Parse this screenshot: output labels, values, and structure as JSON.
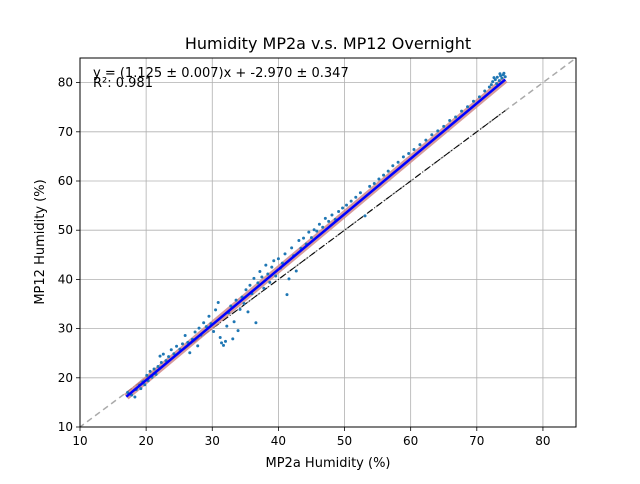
{
  "chart_data": {
    "type": "scatter",
    "title": "Humidity MP2a v.s. MP12 Overnight",
    "xlabel": "MP2a Humidity (%)",
    "ylabel": "MP12 Humidity (%)",
    "xlim": [
      10,
      85
    ],
    "ylim": [
      10,
      85
    ],
    "xticks": [
      "10",
      "20",
      "30",
      "40",
      "50",
      "60",
      "70",
      "80"
    ],
    "yticks": [
      "10",
      "20",
      "30",
      "40",
      "50",
      "60",
      "70",
      "80"
    ],
    "grid": true,
    "annotation": {
      "equation": "y = (1.125 ± 0.007)x + -2.970 ± 0.347",
      "r2": "R²: 0.981"
    },
    "fit": {
      "slope": 1.125,
      "intercept": -2.97,
      "x_range": [
        17,
        74.3
      ]
    },
    "fit_band": {
      "x_range": [
        17,
        74.3
      ]
    },
    "identity_line": {
      "x_range": [
        5,
        90
      ]
    },
    "secondary_line": {
      "x_range": [
        17,
        74.3
      ]
    },
    "scatter_points": [
      [
        17.2,
        17.0
      ],
      [
        17.8,
        16.5
      ],
      [
        18.3,
        16.1
      ],
      [
        18.5,
        17.6
      ],
      [
        19.0,
        18.5
      ],
      [
        19.2,
        17.8
      ],
      [
        19.5,
        19.2
      ],
      [
        19.8,
        18.6
      ],
      [
        20.1,
        20.5
      ],
      [
        20.3,
        19.4
      ],
      [
        20.6,
        21.3
      ],
      [
        20.9,
        20.1
      ],
      [
        21.2,
        21.8
      ],
      [
        21.5,
        20.7
      ],
      [
        21.8,
        22.3
      ],
      [
        22.1,
        24.4
      ],
      [
        22.3,
        23.1
      ],
      [
        22.6,
        24.8
      ],
      [
        23.0,
        23.5
      ],
      [
        23.4,
        24.3
      ],
      [
        23.8,
        25.7
      ],
      [
        24.2,
        24.9
      ],
      [
        24.6,
        26.4
      ],
      [
        25.1,
        25.8
      ],
      [
        25.5,
        26.9
      ],
      [
        25.9,
        28.6
      ],
      [
        26.3,
        27.2
      ],
      [
        26.6,
        25.1
      ],
      [
        27.0,
        27.8
      ],
      [
        27.4,
        29.3
      ],
      [
        27.8,
        26.5
      ],
      [
        28.0,
        30.1
      ],
      [
        28.3,
        28.7
      ],
      [
        28.7,
        31.2
      ],
      [
        29.1,
        30.4
      ],
      [
        29.5,
        32.5
      ],
      [
        29.8,
        31.0
      ],
      [
        30.2,
        29.4
      ],
      [
        30.5,
        33.8
      ],
      [
        30.9,
        35.3
      ],
      [
        31.2,
        28.2
      ],
      [
        31.4,
        27.1
      ],
      [
        31.7,
        26.6
      ],
      [
        32.0,
        27.4
      ],
      [
        32.2,
        30.5
      ],
      [
        32.5,
        33.2
      ],
      [
        32.8,
        34.6
      ],
      [
        33.1,
        27.9
      ],
      [
        33.3,
        31.4
      ],
      [
        33.6,
        35.8
      ],
      [
        33.9,
        29.6
      ],
      [
        34.2,
        33.9
      ],
      [
        34.5,
        36.4
      ],
      [
        34.8,
        35.1
      ],
      [
        35.1,
        37.9
      ],
      [
        35.4,
        33.4
      ],
      [
        35.7,
        38.8
      ],
      [
        36.0,
        37.1
      ],
      [
        36.3,
        40.2
      ],
      [
        36.6,
        31.2
      ],
      [
        36.9,
        39.3
      ],
      [
        37.2,
        41.6
      ],
      [
        37.5,
        40.5
      ],
      [
        37.8,
        38.2
      ],
      [
        38.1,
        42.9
      ],
      [
        38.4,
        41.1
      ],
      [
        38.7,
        39.4
      ],
      [
        39.0,
        42.5
      ],
      [
        39.3,
        43.8
      ],
      [
        39.6,
        40.7
      ],
      [
        40.0,
        44.2
      ],
      [
        40.3,
        42.3
      ],
      [
        40.6,
        43.3
      ],
      [
        41.0,
        45.2
      ],
      [
        41.3,
        36.9
      ],
      [
        41.6,
        40.1
      ],
      [
        42.0,
        46.4
      ],
      [
        42.3,
        44.8
      ],
      [
        42.7,
        41.7
      ],
      [
        43.1,
        47.9
      ],
      [
        43.4,
        46.3
      ],
      [
        43.8,
        48.4
      ],
      [
        44.2,
        47.2
      ],
      [
        44.6,
        49.6
      ],
      [
        45.0,
        48.5
      ],
      [
        45.4,
        50.1
      ],
      [
        45.8,
        49.8
      ],
      [
        46.2,
        51.2
      ],
      [
        46.7,
        50.6
      ],
      [
        47.1,
        52.4
      ],
      [
        47.6,
        51.8
      ],
      [
        48.1,
        53.1
      ],
      [
        48.6,
        52.2
      ],
      [
        49.1,
        53.8
      ],
      [
        49.7,
        54.5
      ],
      [
        50.3,
        55.1
      ],
      [
        51.0,
        55.9
      ],
      [
        51.7,
        56.7
      ],
      [
        52.4,
        57.6
      ],
      [
        53.1,
        52.9
      ],
      [
        53.8,
        58.9
      ],
      [
        54.5,
        59.5
      ],
      [
        55.2,
        60.4
      ],
      [
        55.9,
        61.2
      ],
      [
        56.6,
        62.0
      ],
      [
        57.3,
        63.1
      ],
      [
        58.1,
        63.8
      ],
      [
        58.9,
        64.9
      ],
      [
        59.7,
        65.6
      ],
      [
        60.5,
        66.4
      ],
      [
        61.4,
        67.4
      ],
      [
        62.3,
        68.3
      ],
      [
        63.2,
        69.4
      ],
      [
        64.1,
        70.2
      ],
      [
        65.0,
        71.1
      ],
      [
        65.9,
        72.3
      ],
      [
        66.8,
        73.0
      ],
      [
        67.7,
        74.2
      ],
      [
        68.6,
        75.1
      ],
      [
        69.5,
        76.2
      ],
      [
        70.4,
        77.1
      ],
      [
        71.2,
        78.3
      ],
      [
        71.9,
        79.1
      ],
      [
        72.4,
        80.2
      ],
      [
        72.8,
        80.6
      ],
      [
        73.1,
        81.1
      ],
      [
        73.4,
        80.4
      ],
      [
        73.6,
        81.4
      ],
      [
        73.8,
        80.9
      ],
      [
        74.0,
        81.6
      ],
      [
        74.1,
        81.9
      ],
      [
        74.3,
        81.2
      ],
      [
        72.2,
        79.6
      ],
      [
        72.6,
        81.0
      ],
      [
        73.0,
        79.8
      ],
      [
        73.5,
        81.8
      ]
    ]
  },
  "colors": {
    "points": "#1f77b4",
    "fit_line": "#0000ff",
    "fit_band": "#d08a8a",
    "identity_line": "#aaaaaa",
    "secondary_line": "#000000",
    "grid": "#b0b0b0"
  }
}
